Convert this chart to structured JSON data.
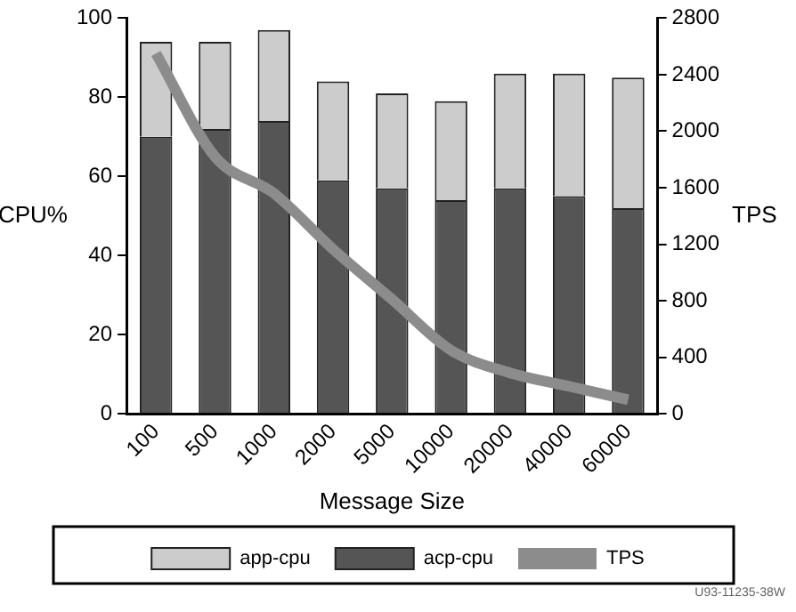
{
  "chart_data": {
    "type": "bar",
    "stacked": true,
    "xlabel": "Message Size",
    "ylabel": "CPU%",
    "y2label": "TPS",
    "categories": [
      "100",
      "500",
      "1000",
      "2000",
      "5000",
      "10000",
      "20000",
      "40000",
      "60000"
    ],
    "series": [
      {
        "name": "acp-cpu",
        "color": "#555555",
        "values": [
          70,
          72,
          74,
          59,
          57,
          54,
          57,
          55,
          52
        ]
      },
      {
        "name": "app-cpu",
        "color": "#cccccc",
        "values": [
          24,
          22,
          23,
          25,
          24,
          25,
          29,
          31,
          33
        ]
      },
      {
        "name": "TPS",
        "type": "line",
        "axis": "y2",
        "color": "#8c8c8c",
        "values": [
          2550,
          1820,
          1560,
          1165,
          810,
          450,
          290,
          195,
          100
        ]
      }
    ],
    "ylim": [
      0,
      100
    ],
    "yticks": [
      0,
      20,
      40,
      60,
      80,
      100
    ],
    "y2lim": [
      0,
      2800
    ],
    "y2ticks": [
      0,
      400,
      800,
      1200,
      1600,
      2000,
      2400,
      2800
    ],
    "grid": false,
    "legend": "bottom",
    "marker": "none",
    "annotations": [
      "U93-11235-38W"
    ]
  }
}
